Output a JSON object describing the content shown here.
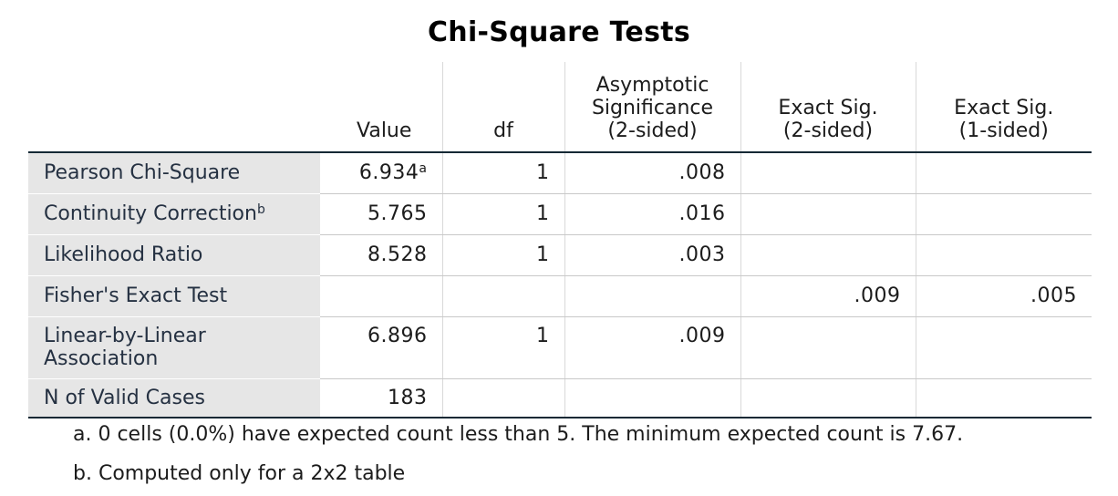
{
  "title": "Chi-Square Tests",
  "headers": {
    "value": "Value",
    "df": "df",
    "asymp_line1": "Asymptotic",
    "asymp_line2": "Significance",
    "asymp_line3": "(2-sided)",
    "exact2_line1": "Exact Sig.",
    "exact2_line2": "(2-sided)",
    "exact1_line1": "Exact Sig.",
    "exact1_line2": "(1-sided)"
  },
  "rows": [
    {
      "label": "Pearson Chi-Square",
      "label_sup": "",
      "value": "6.934",
      "value_sup": "a",
      "df": "1",
      "asymp": ".008",
      "exact2": "",
      "exact1": ""
    },
    {
      "label": "Continuity Correction",
      "label_sup": "b",
      "value": "5.765",
      "value_sup": "",
      "df": "1",
      "asymp": ".016",
      "exact2": "",
      "exact1": ""
    },
    {
      "label": "Likelihood Ratio",
      "label_sup": "",
      "value": "8.528",
      "value_sup": "",
      "df": "1",
      "asymp": ".003",
      "exact2": "",
      "exact1": ""
    },
    {
      "label": "Fisher's Exact Test",
      "label_sup": "",
      "value": "",
      "value_sup": "",
      "df": "",
      "asymp": "",
      "exact2": ".009",
      "exact1": ".005"
    },
    {
      "label": "Linear-by-Linear",
      "label_line2": "Association",
      "label_sup": "",
      "value": "6.896",
      "value_sup": "",
      "df": "1",
      "asymp": ".009",
      "exact2": "",
      "exact1": ""
    },
    {
      "label": "N of Valid Cases",
      "label_sup": "",
      "value": "183",
      "value_sup": "",
      "df": "",
      "asymp": "",
      "exact2": "",
      "exact1": ""
    }
  ],
  "footnotes": {
    "a": "a. 0 cells (0.0%) have expected count less than 5. The minimum expected count is 7.67.",
    "b": "b. Computed only for a 2x2 table"
  }
}
